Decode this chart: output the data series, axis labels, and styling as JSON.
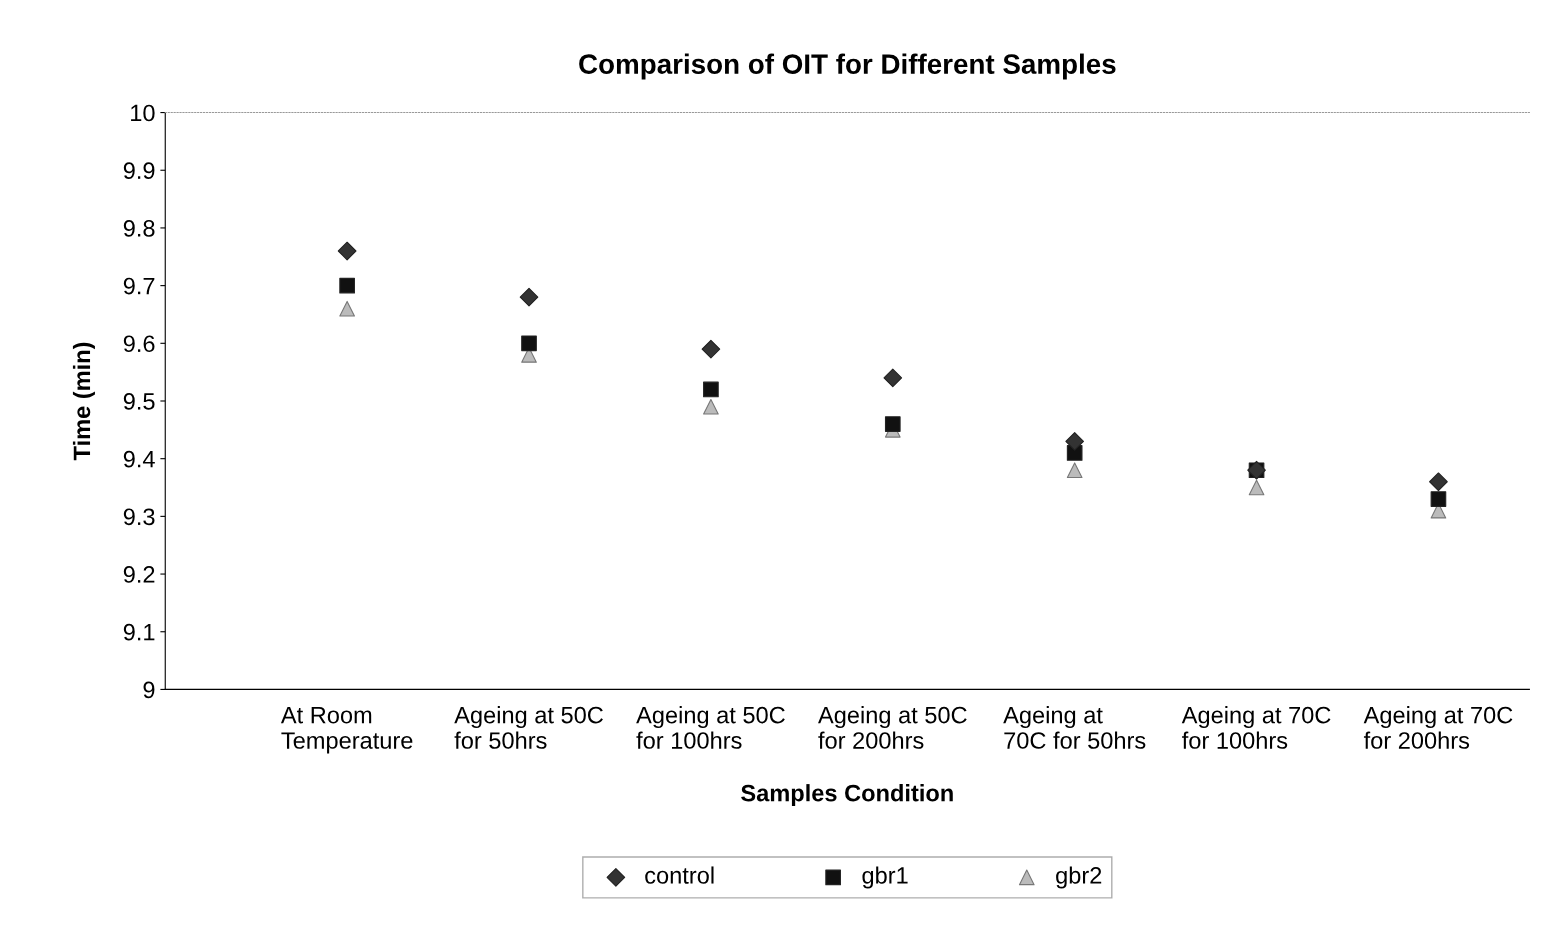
{
  "chart_data": {
    "type": "scatter",
    "title": "Comparison of OIT for Different Samples",
    "xlabel": "Samples Condition",
    "ylabel": "Time (min)",
    "categories": [
      "At Room\nTemperature",
      "Ageing at 50C\nfor 50hrs",
      "Ageing at 50C\nfor 100hrs",
      "Ageing at 50C\nfor 200hrs",
      "Ageing at\n70C for 50hrs",
      "Ageing at 70C\nfor 100hrs",
      "Ageing at 70C\nfor 200hrs"
    ],
    "series": [
      {
        "name": "control",
        "color": "#333333",
        "marker": "diamond",
        "values": [
          9.76,
          9.68,
          9.59,
          9.54,
          9.43,
          9.38,
          9.36
        ]
      },
      {
        "name": "gbr1",
        "color": "#111111",
        "marker": "square",
        "values": [
          9.7,
          9.6,
          9.52,
          9.46,
          9.41,
          9.38,
          9.33
        ]
      },
      {
        "name": "gbr2",
        "color": "#bbbbbb",
        "marker": "triangle",
        "values": [
          9.66,
          9.58,
          9.49,
          9.45,
          9.38,
          9.35,
          9.31
        ]
      }
    ],
    "ylim": [
      9,
      10
    ],
    "yticks": [
      9,
      9.1,
      9.2,
      9.3,
      9.4,
      9.5,
      9.6,
      9.7,
      9.8,
      9.9,
      10
    ],
    "grid": false,
    "legend": "bottom"
  }
}
